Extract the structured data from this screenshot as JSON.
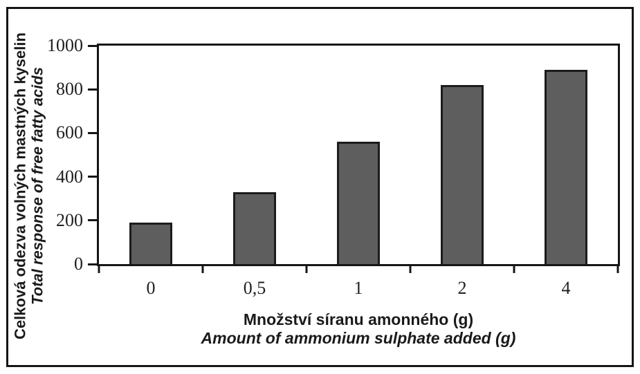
{
  "chart_data": {
    "type": "bar",
    "categories": [
      "0",
      "0,5",
      "1",
      "2",
      "4"
    ],
    "values": [
      190,
      330,
      560,
      820,
      890
    ],
    "series_name": "Total response of free fatty acids",
    "title": "",
    "ylabel_cs": "Celková odezva volných mastných kyselin",
    "ylabel_en": "Total response of free fatty acids",
    "xlabel_cs": "Množství síranu amonného (g)",
    "xlabel_en": "Amount of ammonium sulphate added (g)",
    "yticks": [
      0,
      200,
      400,
      600,
      800,
      1000
    ],
    "ylim": [
      0,
      1000
    ],
    "grid": false,
    "legend_position": "none",
    "bar_color": "#5e5e5e",
    "bar_border_color": "#1c1c1c",
    "axis_color": "#151515",
    "background_color": "#ffffff"
  }
}
